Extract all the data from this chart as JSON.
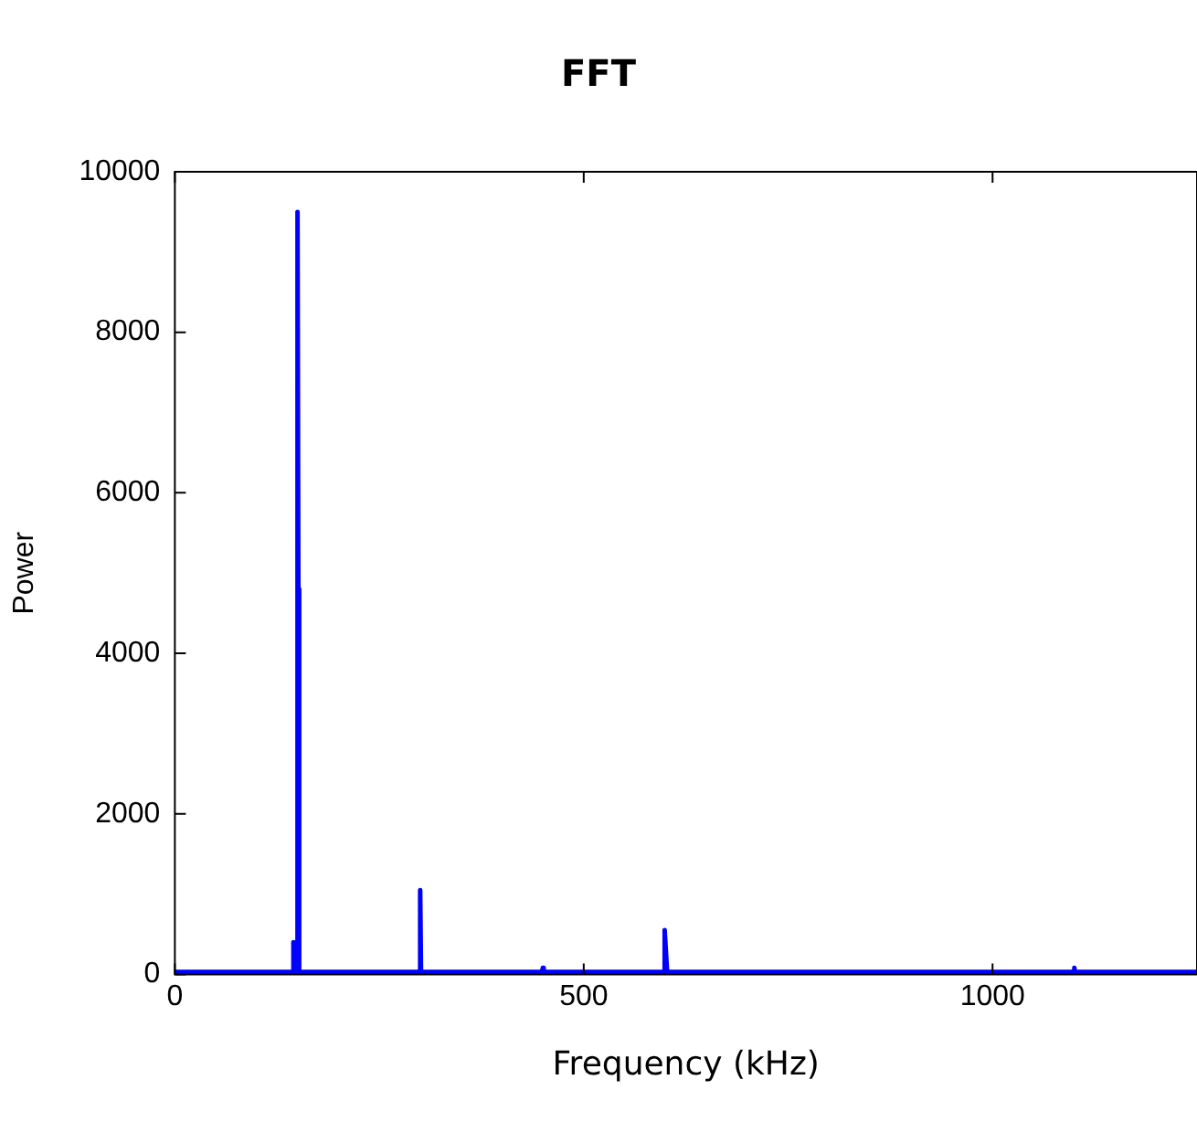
{
  "chart_data": {
    "type": "line",
    "title": "FFT",
    "xlabel": "Frequency (kHz)",
    "ylabel": "Power",
    "x": [
      0,
      144,
      145,
      146,
      149,
      150,
      151,
      152,
      298,
      300,
      301,
      449,
      450,
      451,
      598,
      599,
      601,
      602,
      1099,
      1100,
      1101,
      1250
    ],
    "series": [
      {
        "color": "#0000ff",
        "values": [
          30,
          30,
          400,
          30,
          30,
          9500,
          4800,
          30,
          30,
          1050,
          30,
          30,
          80,
          30,
          30,
          550,
          200,
          30,
          30,
          80,
          30,
          30
        ]
      }
    ],
    "xlim": [
      0,
      1250
    ],
    "xticks": [
      0,
      500,
      1000
    ],
    "ylim": [
      0,
      10000
    ],
    "yticks": [
      0,
      2000,
      4000,
      6000,
      8000,
      10000
    ],
    "grid": false,
    "legend": false,
    "marker": "none",
    "line_style": "solid"
  }
}
